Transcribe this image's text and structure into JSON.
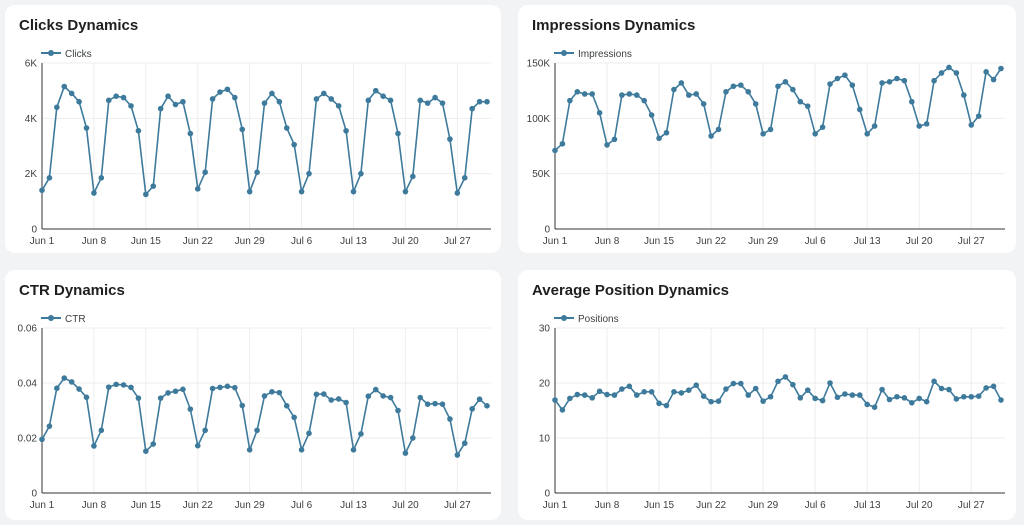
{
  "colors": {
    "series": "#3d7a9c",
    "grid": "#eeeeee",
    "axis": "#333333"
  },
  "chart_data": [
    {
      "type": "line",
      "title": "Clicks Dynamics",
      "legend": "Clicks",
      "x_ticks": [
        "Jun 1",
        "Jun 8",
        "Jun 15",
        "Jun 22",
        "Jun 29",
        "Jul 6",
        "Jul 13",
        "Jul 20",
        "Jul 27"
      ],
      "y_ticks": [
        "0",
        "2K",
        "4K",
        "6K"
      ],
      "ylim": [
        0,
        6000
      ],
      "x": [
        "Jun 1",
        "Jun 2",
        "Jun 3",
        "Jun 4",
        "Jun 5",
        "Jun 6",
        "Jun 7",
        "Jun 8",
        "Jun 9",
        "Jun 10",
        "Jun 11",
        "Jun 12",
        "Jun 13",
        "Jun 14",
        "Jun 15",
        "Jun 16",
        "Jun 17",
        "Jun 18",
        "Jun 19",
        "Jun 20",
        "Jun 21",
        "Jun 22",
        "Jun 23",
        "Jun 24",
        "Jun 25",
        "Jun 26",
        "Jun 27",
        "Jun 28",
        "Jun 29",
        "Jun 30",
        "Jul 1",
        "Jul 2",
        "Jul 3",
        "Jul 4",
        "Jul 5",
        "Jul 6",
        "Jul 7",
        "Jul 8",
        "Jul 9",
        "Jul 10",
        "Jul 11",
        "Jul 12",
        "Jul 13",
        "Jul 14",
        "Jul 15",
        "Jul 16",
        "Jul 17",
        "Jul 18",
        "Jul 19",
        "Jul 20",
        "Jul 21",
        "Jul 22",
        "Jul 23",
        "Jul 24",
        "Jul 25",
        "Jul 26",
        "Jul 27",
        "Jul 28",
        "Jul 29",
        "Jul 30",
        "Jul 31"
      ],
      "values": [
        1400,
        1850,
        4400,
        5150,
        4900,
        4600,
        3650,
        1300,
        1850,
        4650,
        4800,
        4750,
        4450,
        3550,
        1250,
        1550,
        4350,
        4800,
        4500,
        4600,
        3450,
        1450,
        2050,
        4700,
        4950,
        5050,
        4750,
        3600,
        1350,
        2050,
        4550,
        4900,
        4600,
        3650,
        3050,
        1350,
        2000,
        4700,
        4900,
        4700,
        4450,
        3550,
        1350,
        2000,
        4650,
        5000,
        4800,
        4650,
        3450,
        1350,
        1900,
        4650,
        4550,
        4750,
        4550,
        3250,
        1300,
        1850,
        4350,
        4600,
        4600
      ]
    },
    {
      "type": "line",
      "title": "Impressions Dynamics",
      "legend": "Impressions",
      "x_ticks": [
        "Jun 1",
        "Jun 8",
        "Jun 15",
        "Jun 22",
        "Jun 29",
        "Jul 6",
        "Jul 13",
        "Jul 20",
        "Jul 27"
      ],
      "y_ticks": [
        "0",
        "50K",
        "100K",
        "150K"
      ],
      "ylim": [
        0,
        150000
      ],
      "x": [
        "Jun 1",
        "Jun 2",
        "Jun 3",
        "Jun 4",
        "Jun 5",
        "Jun 6",
        "Jun 7",
        "Jun 8",
        "Jun 9",
        "Jun 10",
        "Jun 11",
        "Jun 12",
        "Jun 13",
        "Jun 14",
        "Jun 15",
        "Jun 16",
        "Jun 17",
        "Jun 18",
        "Jun 19",
        "Jun 20",
        "Jun 21",
        "Jun 22",
        "Jun 23",
        "Jun 24",
        "Jun 25",
        "Jun 26",
        "Jun 27",
        "Jun 28",
        "Jun 29",
        "Jun 30",
        "Jul 1",
        "Jul 2",
        "Jul 3",
        "Jul 4",
        "Jul 5",
        "Jul 6",
        "Jul 7",
        "Jul 8",
        "Jul 9",
        "Jul 10",
        "Jul 11",
        "Jul 12",
        "Jul 13",
        "Jul 14",
        "Jul 15",
        "Jul 16",
        "Jul 17",
        "Jul 18",
        "Jul 19",
        "Jul 20",
        "Jul 21",
        "Jul 22",
        "Jul 23",
        "Jul 24",
        "Jul 25",
        "Jul 26",
        "Jul 27",
        "Jul 28",
        "Jul 29",
        "Jul 30",
        "Jul 31"
      ],
      "values": [
        71000,
        77000,
        116000,
        124000,
        122000,
        122000,
        105000,
        76000,
        81000,
        121000,
        122000,
        121000,
        116000,
        103000,
        82000,
        87000,
        126000,
        132000,
        121000,
        122000,
        113000,
        84000,
        90000,
        124000,
        129000,
        130000,
        124000,
        113000,
        86000,
        90000,
        129000,
        133000,
        126000,
        115000,
        111000,
        86000,
        92000,
        131000,
        136000,
        139000,
        130000,
        108000,
        86000,
        93000,
        132000,
        133000,
        136000,
        134000,
        115000,
        93000,
        95000,
        134000,
        141000,
        146000,
        141000,
        121000,
        94000,
        102000,
        142000,
        135000,
        145000
      ]
    },
    {
      "type": "line",
      "title": "CTR Dynamics",
      "legend": "CTR",
      "x_ticks": [
        "Jun 1",
        "Jun 8",
        "Jun 15",
        "Jun 22",
        "Jun 29",
        "Jul 6",
        "Jul 13",
        "Jul 20",
        "Jul 27"
      ],
      "y_ticks": [
        "0",
        "0.02",
        "0.04",
        "0.06"
      ],
      "ylim": [
        0,
        0.06
      ],
      "x": [
        "Jun 1",
        "Jun 2",
        "Jun 3",
        "Jun 4",
        "Jun 5",
        "Jun 6",
        "Jun 7",
        "Jun 8",
        "Jun 9",
        "Jun 10",
        "Jun 11",
        "Jun 12",
        "Jun 13",
        "Jun 14",
        "Jun 15",
        "Jun 16",
        "Jun 17",
        "Jun 18",
        "Jun 19",
        "Jun 20",
        "Jun 21",
        "Jun 22",
        "Jun 23",
        "Jun 24",
        "Jun 25",
        "Jun 26",
        "Jun 27",
        "Jun 28",
        "Jun 29",
        "Jun 30",
        "Jul 1",
        "Jul 2",
        "Jul 3",
        "Jul 4",
        "Jul 5",
        "Jul 6",
        "Jul 7",
        "Jul 8",
        "Jul 9",
        "Jul 10",
        "Jul 11",
        "Jul 12",
        "Jul 13",
        "Jul 14",
        "Jul 15",
        "Jul 16",
        "Jul 17",
        "Jul 18",
        "Jul 19",
        "Jul 20",
        "Jul 21",
        "Jul 22",
        "Jul 23",
        "Jul 24",
        "Jul 25",
        "Jul 26",
        "Jul 27",
        "Jul 28",
        "Jul 29",
        "Jul 30",
        "Jul 31"
      ],
      "values": [
        0.0195,
        0.0243,
        0.0381,
        0.0418,
        0.0404,
        0.0378,
        0.0348,
        0.0171,
        0.0228,
        0.0385,
        0.0395,
        0.0393,
        0.0384,
        0.0345,
        0.0152,
        0.0178,
        0.0345,
        0.0364,
        0.037,
        0.0377,
        0.0305,
        0.0172,
        0.0228,
        0.038,
        0.0384,
        0.0388,
        0.0383,
        0.0318,
        0.0157,
        0.0228,
        0.0353,
        0.0368,
        0.0365,
        0.0317,
        0.0275,
        0.0157,
        0.0217,
        0.0359,
        0.036,
        0.0338,
        0.0342,
        0.0329,
        0.0157,
        0.0215,
        0.0352,
        0.0376,
        0.0353,
        0.0347,
        0.03,
        0.0145,
        0.02,
        0.0347,
        0.0323,
        0.0325,
        0.0323,
        0.0269,
        0.0138,
        0.0181,
        0.0306,
        0.0341,
        0.0317
      ]
    },
    {
      "type": "line",
      "title": "Average Position Dynamics",
      "legend": "Positions",
      "x_ticks": [
        "Jun 1",
        "Jun 8",
        "Jun 15",
        "Jun 22",
        "Jun 29",
        "Jul 6",
        "Jul 13",
        "Jul 20",
        "Jul 27"
      ],
      "y_ticks": [
        "0",
        "10",
        "20",
        "30"
      ],
      "ylim": [
        0,
        30
      ],
      "x": [
        "Jun 1",
        "Jun 2",
        "Jun 3",
        "Jun 4",
        "Jun 5",
        "Jun 6",
        "Jun 7",
        "Jun 8",
        "Jun 9",
        "Jun 10",
        "Jun 11",
        "Jun 12",
        "Jun 13",
        "Jun 14",
        "Jun 15",
        "Jun 16",
        "Jun 17",
        "Jun 18",
        "Jun 19",
        "Jun 20",
        "Jun 21",
        "Jun 22",
        "Jun 23",
        "Jun 24",
        "Jun 25",
        "Jun 26",
        "Jun 27",
        "Jun 28",
        "Jun 29",
        "Jun 30",
        "Jul 1",
        "Jul 2",
        "Jul 3",
        "Jul 4",
        "Jul 5",
        "Jul 6",
        "Jul 7",
        "Jul 8",
        "Jul 9",
        "Jul 10",
        "Jul 11",
        "Jul 12",
        "Jul 13",
        "Jul 14",
        "Jul 15",
        "Jul 16",
        "Jul 17",
        "Jul 18",
        "Jul 19",
        "Jul 20",
        "Jul 21",
        "Jul 22",
        "Jul 23",
        "Jul 24",
        "Jul 25",
        "Jul 26",
        "Jul 27",
        "Jul 28",
        "Jul 29",
        "Jul 30",
        "Jul 31"
      ],
      "values": [
        16.9,
        15.1,
        17.2,
        17.9,
        17.8,
        17.3,
        18.5,
        17.9,
        17.8,
        18.9,
        19.4,
        17.8,
        18.4,
        18.4,
        16.3,
        15.9,
        18.4,
        18.2,
        18.7,
        19.6,
        17.6,
        16.6,
        16.7,
        18.9,
        19.9,
        19.9,
        17.8,
        19.0,
        16.7,
        17.5,
        20.3,
        21.1,
        19.7,
        17.3,
        18.7,
        17.2,
        16.8,
        20.0,
        17.4,
        18.0,
        17.8,
        17.8,
        16.1,
        15.6,
        18.8,
        17.0,
        17.5,
        17.3,
        16.4,
        17.2,
        16.6,
        20.3,
        19.0,
        18.8,
        17.1,
        17.5,
        17.5,
        17.6,
        19.1,
        19.4,
        16.9
      ]
    }
  ]
}
